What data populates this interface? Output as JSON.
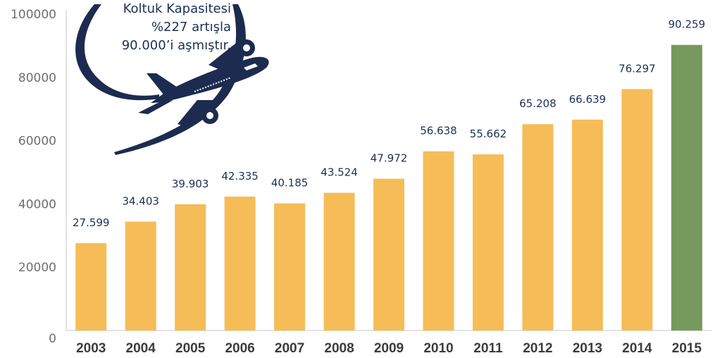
{
  "chart_data": {
    "type": "bar",
    "categories": [
      "2003",
      "2004",
      "2005",
      "2006",
      "2007",
      "2008",
      "2009",
      "2010",
      "2011",
      "2012",
      "2013",
      "2014",
      "2015"
    ],
    "values": [
      27599,
      34403,
      39903,
      42335,
      40185,
      43524,
      47972,
      56638,
      55662,
      65208,
      66639,
      76297,
      90259
    ],
    "data_labels": [
      "27.599",
      "34.403",
      "39.903",
      "42.335",
      "40.185",
      "43.524",
      "47.972",
      "56.638",
      "55.662",
      "65.208",
      "66.639",
      "76.297",
      "90.259"
    ],
    "yticks": [
      0,
      20000,
      40000,
      60000,
      80000,
      100000
    ],
    "ylim": [
      0,
      100000
    ],
    "grid": false,
    "colors": {
      "bar": "#f6bc57",
      "highlight": "#76995e",
      "label": "#1d2f54",
      "plane": "#1c2b4f"
    },
    "highlight_index": 12
  },
  "annotation": {
    "line1": "Koltuk Kapasitesi",
    "line2": "%227 artışla",
    "line3": "90.000’i  aşmıştır.",
    "icon": "airplane-icon"
  }
}
